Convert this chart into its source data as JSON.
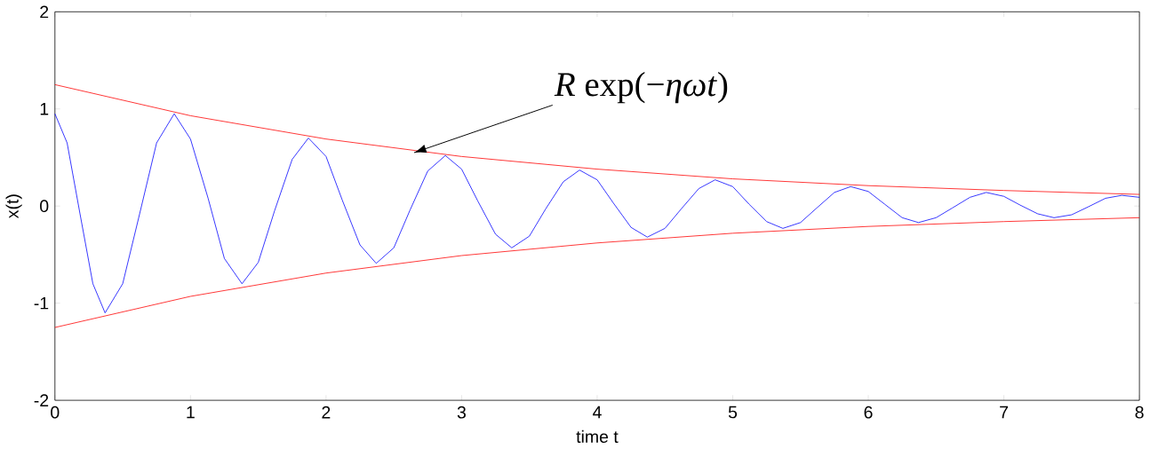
{
  "chart_data": {
    "type": "line",
    "xlabel": "time t",
    "ylabel": "x(t)",
    "xlim": [
      0,
      8
    ],
    "ylim": [
      -2,
      2
    ],
    "xticks": [
      0,
      1,
      2,
      3,
      4,
      5,
      6,
      7,
      8
    ],
    "yticks": [
      -2,
      -1,
      0,
      1,
      2
    ],
    "annotations": [
      {
        "text": "*R* exp(−*ηωt*)",
        "x": 2.65,
        "y": 0.55
      }
    ],
    "series": [
      {
        "color": "#0000ff",
        "x": [
          0,
          0.09,
          0.185,
          0.28,
          0.37,
          0.5,
          0.625,
          0.75,
          0.88,
          1.0,
          1.13,
          1.25,
          1.38,
          1.5,
          1.62,
          1.75,
          1.87,
          2.0,
          2.12,
          2.25,
          2.37,
          2.5,
          2.62,
          2.75,
          2.88,
          3.0,
          3.12,
          3.25,
          3.37,
          3.5,
          3.62,
          3.75,
          3.87,
          4.0,
          4.12,
          4.25,
          4.37,
          4.5,
          4.62,
          4.75,
          4.87,
          5.0,
          5.12,
          5.25,
          5.37,
          5.5,
          5.62,
          5.75,
          5.87,
          6.0,
          6.12,
          6.25,
          6.37,
          6.5,
          6.62,
          6.75,
          6.87,
          7.0,
          7.12,
          7.25,
          7.37,
          7.5,
          7.62,
          7.75,
          7.87,
          8.0
        ],
        "values": [
          0.95,
          0.65,
          -0.08,
          -0.8,
          -1.1,
          -0.8,
          -0.08,
          0.65,
          0.95,
          0.69,
          0.08,
          -0.54,
          -0.8,
          -0.58,
          -0.05,
          0.48,
          0.7,
          0.51,
          0.06,
          -0.4,
          -0.59,
          -0.43,
          -0.04,
          0.36,
          0.52,
          0.38,
          0.05,
          -0.29,
          -0.43,
          -0.31,
          -0.03,
          0.25,
          0.37,
          0.27,
          0.03,
          -0.22,
          -0.32,
          -0.23,
          -0.03,
          0.18,
          0.27,
          0.2,
          0.02,
          -0.16,
          -0.23,
          -0.17,
          -0.02,
          0.14,
          0.2,
          0.15,
          0.02,
          -0.12,
          -0.17,
          -0.12,
          -0.02,
          0.09,
          0.14,
          0.1,
          0.01,
          -0.08,
          -0.12,
          -0.09,
          -0.01,
          0.08,
          0.11,
          0.09
        ]
      },
      {
        "color": "#ff0000",
        "x": [
          0,
          1,
          2,
          3,
          4,
          5,
          6,
          7,
          8
        ],
        "values": [
          1.25,
          0.93,
          0.69,
          0.51,
          0.38,
          0.28,
          0.21,
          0.16,
          0.12
        ]
      },
      {
        "color": "#ff0000",
        "x": [
          0,
          1,
          2,
          3,
          4,
          5,
          6,
          7,
          8
        ],
        "values": [
          -1.25,
          -0.93,
          -0.69,
          -0.51,
          -0.38,
          -0.28,
          -0.21,
          -0.16,
          -0.12
        ]
      }
    ]
  }
}
